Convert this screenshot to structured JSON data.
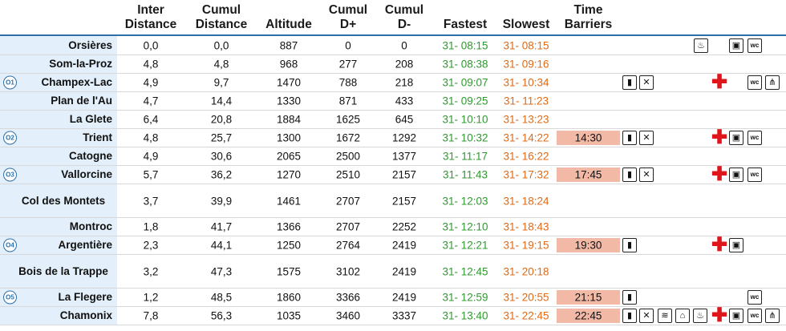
{
  "headers": {
    "inter": "Inter Distance",
    "cumul": "Cumul Distance",
    "altitude": "Altitude",
    "dplus": "Cumul D+",
    "dminus": "Cumul D-",
    "fastest": "Fastest",
    "slowest": "Slowest",
    "barriers": "Time Barriers"
  },
  "rows": [
    {
      "badge": "",
      "name": "Orsières",
      "inter": "0,0",
      "cumul": "0,0",
      "alt": "887",
      "dplus": "0",
      "dminus": "0",
      "fast": "31- 08:15",
      "slow": "31- 08:15",
      "barrier": "",
      "icons": [
        "bag-icon",
        "bus-icon",
        "wc-icon"
      ]
    },
    {
      "badge": "",
      "name": "Som-la-Proz",
      "inter": "4,8",
      "cumul": "4,8",
      "alt": "968",
      "dplus": "277",
      "dminus": "208",
      "fast": "31- 08:38",
      "slow": "31- 09:16",
      "barrier": "",
      "icons": []
    },
    {
      "badge": "O1",
      "name": "Champex-Lac",
      "inter": "4,9",
      "cumul": "9,7",
      "alt": "1470",
      "dplus": "788",
      "dminus": "218",
      "fast": "31- 09:07",
      "slow": "31- 10:34",
      "barrier": "",
      "icons": [
        "drink-icon",
        "food-icon",
        "medical-icon",
        "wc-icon",
        "shower-icon"
      ]
    },
    {
      "badge": "",
      "name": "Plan de l'Au",
      "inter": "4,7",
      "cumul": "14,4",
      "alt": "1330",
      "dplus": "871",
      "dminus": "433",
      "fast": "31- 09:25",
      "slow": "31- 11:23",
      "barrier": "",
      "icons": []
    },
    {
      "badge": "",
      "name": "La Glete",
      "inter": "6,4",
      "cumul": "20,8",
      "alt": "1884",
      "dplus": "1625",
      "dminus": "645",
      "fast": "31- 10:10",
      "slow": "31- 13:23",
      "barrier": "",
      "icons": []
    },
    {
      "badge": "O2",
      "name": "Trient",
      "inter": "4,8",
      "cumul": "25,7",
      "alt": "1300",
      "dplus": "1672",
      "dminus": "1292",
      "fast": "31- 10:32",
      "slow": "31- 14:22",
      "barrier": "14:30",
      "icons": [
        "drink-icon",
        "food-icon",
        "medical-icon",
        "bus-icon",
        "wc-icon"
      ]
    },
    {
      "badge": "",
      "name": "Catogne",
      "inter": "4,9",
      "cumul": "30,6",
      "alt": "2065",
      "dplus": "2500",
      "dminus": "1377",
      "fast": "31- 11:17",
      "slow": "31- 16:22",
      "barrier": "",
      "icons": []
    },
    {
      "badge": "O3",
      "name": "Vallorcine",
      "inter": "5,7",
      "cumul": "36,2",
      "alt": "1270",
      "dplus": "2510",
      "dminus": "2157",
      "fast": "31- 11:43",
      "slow": "31- 17:32",
      "barrier": "17:45",
      "icons": [
        "drink-icon",
        "food-icon",
        "medical-icon",
        "bus-icon",
        "wc-icon"
      ]
    },
    {
      "badge": "",
      "name": "Col des Montets",
      "inter": "3,7",
      "cumul": "39,9",
      "alt": "1461",
      "dplus": "2707",
      "dminus": "2157",
      "fast": "31- 12:03",
      "slow": "31- 18:24",
      "barrier": "",
      "icons": []
    },
    {
      "badge": "",
      "name": "Montroc",
      "inter": "1,8",
      "cumul": "41,7",
      "alt": "1366",
      "dplus": "2707",
      "dminus": "2252",
      "fast": "31- 12:10",
      "slow": "31- 18:43",
      "barrier": "",
      "icons": []
    },
    {
      "badge": "O4",
      "name": "Argentière",
      "inter": "2,3",
      "cumul": "44,1",
      "alt": "1250",
      "dplus": "2764",
      "dminus": "2419",
      "fast": "31- 12:21",
      "slow": "31- 19:15",
      "barrier": "19:30",
      "icons": [
        "drink-icon",
        "medical-icon",
        "bus-icon"
      ]
    },
    {
      "badge": "",
      "name": "Bois de la Trappe",
      "inter": "3,2",
      "cumul": "47,3",
      "alt": "1575",
      "dplus": "3102",
      "dminus": "2419",
      "fast": "31- 12:45",
      "slow": "31- 20:18",
      "barrier": "",
      "icons": []
    },
    {
      "badge": "O5",
      "name": "La Flegere",
      "inter": "1,2",
      "cumul": "48,5",
      "alt": "1860",
      "dplus": "3366",
      "dminus": "2419",
      "fast": "31- 12:59",
      "slow": "31- 20:55",
      "barrier": "21:15",
      "icons": [
        "drink-icon",
        "wc-icon"
      ]
    },
    {
      "badge": "",
      "name": "Chamonix",
      "inter": "7,8",
      "cumul": "56,3",
      "alt": "1035",
      "dplus": "3460",
      "dminus": "3337",
      "fast": "31- 13:40",
      "slow": "31- 22:45",
      "barrier": "22:45",
      "icons": [
        "drink-icon",
        "food-icon",
        "meal-icon",
        "shelter-icon",
        "bag-icon",
        "medical-icon",
        "bus-icon",
        "wc-icon",
        "shower-icon"
      ]
    }
  ]
}
